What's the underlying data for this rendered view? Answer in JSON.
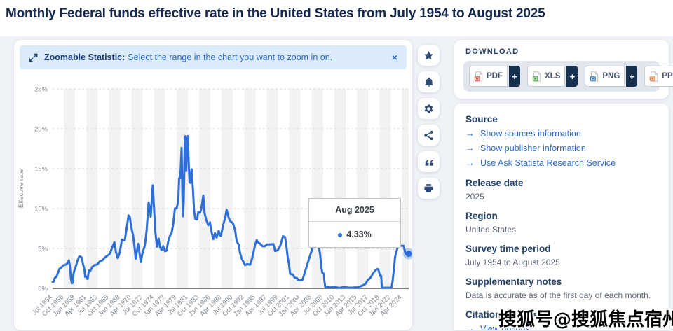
{
  "page": {
    "title": "Monthly Federal funds effective rate in the United States from July 1954 to August 2025",
    "watermark": "搜狐号@搜狐焦点宿州站"
  },
  "banner": {
    "label": "Zoomable Statistic:",
    "text": "Select the range in the chart you want to zoom in on.",
    "close_icon": "×"
  },
  "toolbar": {
    "buttons": [
      {
        "icon": "star"
      },
      {
        "icon": "bell"
      },
      {
        "icon": "gear"
      },
      {
        "icon": "share"
      },
      {
        "icon": "quote"
      },
      {
        "icon": "printer"
      }
    ]
  },
  "download": {
    "heading": "DOWNLOAD",
    "plus_label": "+",
    "formats": [
      {
        "label": "PDF",
        "color": "#d94f43"
      },
      {
        "label": "XLS",
        "color": "#4ca546"
      },
      {
        "label": "PNG",
        "color": "#3779c4"
      },
      {
        "label": "PPT",
        "color": "#e8823a"
      }
    ]
  },
  "info": {
    "arrow": "→",
    "source": {
      "heading": "Source",
      "links": [
        "Show sources information",
        "Show publisher information",
        "Use Ask Statista Research Service"
      ]
    },
    "sections": [
      {
        "heading": "Release date",
        "text": "2025"
      },
      {
        "heading": "Region",
        "text": "United States"
      },
      {
        "heading": "Survey time period",
        "text": "July 1954 to August 2025"
      },
      {
        "heading": "Supplementary notes",
        "text": "Data is accurate as of the first day of each month."
      }
    ],
    "citation": {
      "heading": "Citation formats",
      "link": "View options"
    }
  },
  "chart_data": {
    "type": "line",
    "title": "Monthly Federal funds effective rate in the United States from July 1954 to August 2025",
    "xlabel": "",
    "ylabel": "Effective rate",
    "ylim": [
      0,
      25
    ],
    "yticks": [
      "0%",
      "5%",
      "10%",
      "15%",
      "20%",
      "25%"
    ],
    "x_range": [
      "1954-07",
      "2025-08"
    ],
    "x_tick_step_months": 27,
    "x_tick_labels": [
      "Jul 1954",
      "Oct 1956",
      "Jan 1959",
      "Apr 1961",
      "Jul 1963",
      "Oct 1965",
      "Jan 1968",
      "Apr 1970",
      "Jul 1972",
      "Oct 1974",
      "Jan 1977",
      "Apr 1979",
      "Jul 1981",
      "Oct 1983",
      "Jan 1986",
      "Apr 1988",
      "Jul 1990",
      "Oct 1992",
      "Jan 1995",
      "Apr 1997",
      "Jul 1999",
      "Oct 2001",
      "Jan 2004",
      "Apr 2006",
      "Jul 2008",
      "Oct 2010",
      "Jan 2013",
      "Apr 2015",
      "Jul 2017",
      "Oct 2019",
      "Jan 2022",
      "Apr 2024"
    ],
    "grid": "horizontal-dashed",
    "background_bands": true,
    "legend": "none",
    "line_color": "#2f6fd9",
    "tooltip": {
      "date": "Aug 2025",
      "value": "4.33%"
    },
    "series": [
      {
        "name": "Effective rate (%)",
        "points": [
          [
            "1954-07",
            0.8
          ],
          [
            "1954-10",
            0.85
          ],
          [
            "1954-12",
            1.28
          ],
          [
            "1955-04",
            1.43
          ],
          [
            "1955-08",
            1.96
          ],
          [
            "1955-12",
            2.48
          ],
          [
            "1956-04",
            2.62
          ],
          [
            "1956-08",
            2.85
          ],
          [
            "1956-12",
            2.94
          ],
          [
            "1957-04",
            3.0
          ],
          [
            "1957-08",
            3.24
          ],
          [
            "1957-10",
            3.5
          ],
          [
            "1957-12",
            2.98
          ],
          [
            "1958-03",
            1.2
          ],
          [
            "1958-05",
            0.63
          ],
          [
            "1958-07",
            0.68
          ],
          [
            "1958-09",
            1.76
          ],
          [
            "1958-12",
            2.42
          ],
          [
            "1959-03",
            2.8
          ],
          [
            "1959-06",
            3.39
          ],
          [
            "1959-09",
            3.76
          ],
          [
            "1959-11",
            4.0
          ],
          [
            "1960-02",
            3.97
          ],
          [
            "1960-05",
            3.85
          ],
          [
            "1960-08",
            2.98
          ],
          [
            "1960-11",
            2.44
          ],
          [
            "1961-01",
            1.45
          ],
          [
            "1961-04",
            1.49
          ],
          [
            "1961-07",
            1.17
          ],
          [
            "1961-10",
            2.26
          ],
          [
            "1962-01",
            2.15
          ],
          [
            "1962-06",
            2.68
          ],
          [
            "1962-12",
            2.93
          ],
          [
            "1963-06",
            2.99
          ],
          [
            "1963-12",
            3.38
          ],
          [
            "1964-06",
            3.5
          ],
          [
            "1964-12",
            3.85
          ],
          [
            "1965-06",
            4.1
          ],
          [
            "1965-12",
            4.32
          ],
          [
            "1966-06",
            5.17
          ],
          [
            "1966-11",
            5.76
          ],
          [
            "1967-03",
            4.53
          ],
          [
            "1967-07",
            3.79
          ],
          [
            "1967-12",
            4.51
          ],
          [
            "1968-05",
            6.12
          ],
          [
            "1968-08",
            6.02
          ],
          [
            "1968-12",
            6.02
          ],
          [
            "1969-04",
            7.41
          ],
          [
            "1969-09",
            9.15
          ],
          [
            "1969-12",
            8.97
          ],
          [
            "1970-03",
            7.76
          ],
          [
            "1970-08",
            6.62
          ],
          [
            "1970-12",
            4.9
          ],
          [
            "1971-02",
            3.72
          ],
          [
            "1971-08",
            5.57
          ],
          [
            "1971-12",
            4.14
          ],
          [
            "1972-02",
            3.3
          ],
          [
            "1972-07",
            4.55
          ],
          [
            "1972-12",
            5.33
          ],
          [
            "1973-04",
            7.12
          ],
          [
            "1973-09",
            10.78
          ],
          [
            "1973-12",
            9.95
          ],
          [
            "1974-02",
            8.97
          ],
          [
            "1974-04",
            10.51
          ],
          [
            "1974-07",
            12.92
          ],
          [
            "1974-10",
            10.06
          ],
          [
            "1975-01",
            7.13
          ],
          [
            "1975-05",
            5.22
          ],
          [
            "1975-09",
            6.24
          ],
          [
            "1975-12",
            5.2
          ],
          [
            "1976-04",
            4.82
          ],
          [
            "1976-08",
            5.29
          ],
          [
            "1976-12",
            4.65
          ],
          [
            "1977-04",
            4.73
          ],
          [
            "1977-08",
            5.9
          ],
          [
            "1977-12",
            6.56
          ],
          [
            "1978-04",
            6.89
          ],
          [
            "1978-08",
            8.04
          ],
          [
            "1978-12",
            10.03
          ],
          [
            "1979-04",
            10.01
          ],
          [
            "1979-08",
            10.94
          ],
          [
            "1979-10",
            13.77
          ],
          [
            "1980-01",
            13.82
          ],
          [
            "1980-04",
            17.61
          ],
          [
            "1980-07",
            9.03
          ],
          [
            "1980-09",
            10.87
          ],
          [
            "1980-12",
            18.9
          ],
          [
            "1981-01",
            19.08
          ],
          [
            "1981-03",
            14.7
          ],
          [
            "1981-05",
            18.52
          ],
          [
            "1981-07",
            19.1
          ],
          [
            "1981-09",
            15.87
          ],
          [
            "1981-11",
            13.31
          ],
          [
            "1982-01",
            13.22
          ],
          [
            "1982-04",
            14.94
          ],
          [
            "1982-07",
            12.59
          ],
          [
            "1982-10",
            9.71
          ],
          [
            "1983-01",
            8.68
          ],
          [
            "1983-05",
            8.63
          ],
          [
            "1983-08",
            9.56
          ],
          [
            "1983-12",
            9.47
          ],
          [
            "1984-03",
            9.91
          ],
          [
            "1984-08",
            11.64
          ],
          [
            "1984-11",
            9.43
          ],
          [
            "1985-03",
            8.58
          ],
          [
            "1985-08",
            7.9
          ],
          [
            "1985-12",
            8.27
          ],
          [
            "1986-04",
            6.99
          ],
          [
            "1986-08",
            6.17
          ],
          [
            "1986-12",
            6.91
          ],
          [
            "1987-04",
            6.37
          ],
          [
            "1987-09",
            7.22
          ],
          [
            "1987-11",
            6.69
          ],
          [
            "1988-02",
            6.58
          ],
          [
            "1988-08",
            8.01
          ],
          [
            "1988-12",
            8.76
          ],
          [
            "1989-04",
            9.84
          ],
          [
            "1989-08",
            8.99
          ],
          [
            "1989-12",
            8.45
          ],
          [
            "1990-07",
            8.15
          ],
          [
            "1990-12",
            7.31
          ],
          [
            "1991-04",
            5.91
          ],
          [
            "1991-09",
            5.45
          ],
          [
            "1991-12",
            4.43
          ],
          [
            "1992-04",
            3.73
          ],
          [
            "1992-09",
            3.22
          ],
          [
            "1992-12",
            2.92
          ],
          [
            "1993-06",
            3.04
          ],
          [
            "1993-12",
            2.96
          ],
          [
            "1994-04",
            3.56
          ],
          [
            "1994-08",
            4.47
          ],
          [
            "1994-12",
            5.45
          ],
          [
            "1995-04",
            6.05
          ],
          [
            "1995-08",
            5.74
          ],
          [
            "1995-12",
            5.6
          ],
          [
            "1996-06",
            5.27
          ],
          [
            "1996-12",
            5.29
          ],
          [
            "1997-04",
            5.51
          ],
          [
            "1997-12",
            5.5
          ],
          [
            "1998-08",
            5.55
          ],
          [
            "1998-12",
            4.68
          ],
          [
            "1999-06",
            4.76
          ],
          [
            "1999-12",
            5.3
          ],
          [
            "2000-03",
            5.85
          ],
          [
            "2000-07",
            6.54
          ],
          [
            "2000-12",
            6.4
          ],
          [
            "2001-03",
            5.31
          ],
          [
            "2001-06",
            3.97
          ],
          [
            "2001-09",
            3.07
          ],
          [
            "2001-12",
            1.82
          ],
          [
            "2002-06",
            1.75
          ],
          [
            "2002-11",
            1.34
          ],
          [
            "2003-05",
            1.26
          ],
          [
            "2003-07",
            1.01
          ],
          [
            "2004-05",
            1.0
          ],
          [
            "2004-09",
            1.61
          ],
          [
            "2004-12",
            2.16
          ],
          [
            "2005-04",
            2.79
          ],
          [
            "2005-08",
            3.5
          ],
          [
            "2005-12",
            4.16
          ],
          [
            "2006-04",
            4.79
          ],
          [
            "2006-07",
            5.24
          ],
          [
            "2007-07",
            5.26
          ],
          [
            "2007-10",
            4.76
          ],
          [
            "2007-12",
            4.24
          ],
          [
            "2008-03",
            2.61
          ],
          [
            "2008-05",
            1.98
          ],
          [
            "2008-09",
            1.81
          ],
          [
            "2008-10",
            0.97
          ],
          [
            "2008-12",
            0.16
          ],
          [
            "2009-06",
            0.21
          ],
          [
            "2009-12",
            0.12
          ],
          [
            "2010-06",
            0.18
          ],
          [
            "2010-12",
            0.18
          ],
          [
            "2011-06",
            0.09
          ],
          [
            "2011-12",
            0.07
          ],
          [
            "2012-06",
            0.16
          ],
          [
            "2012-12",
            0.16
          ],
          [
            "2013-06",
            0.09
          ],
          [
            "2013-12",
            0.09
          ],
          [
            "2014-06",
            0.1
          ],
          [
            "2014-12",
            0.12
          ],
          [
            "2015-06",
            0.13
          ],
          [
            "2015-12",
            0.24
          ],
          [
            "2016-06",
            0.38
          ],
          [
            "2016-12",
            0.54
          ],
          [
            "2017-06",
            1.04
          ],
          [
            "2017-12",
            1.3
          ],
          [
            "2018-06",
            1.82
          ],
          [
            "2018-12",
            2.27
          ],
          [
            "2019-04",
            2.42
          ],
          [
            "2019-07",
            2.4
          ],
          [
            "2019-10",
            1.83
          ],
          [
            "2019-12",
            1.55
          ],
          [
            "2020-02",
            1.58
          ],
          [
            "2020-03",
            0.65
          ],
          [
            "2020-05",
            0.05
          ],
          [
            "2020-12",
            0.09
          ],
          [
            "2021-06",
            0.08
          ],
          [
            "2021-12",
            0.08
          ],
          [
            "2022-03",
            0.2
          ],
          [
            "2022-05",
            0.77
          ],
          [
            "2022-07",
            1.68
          ],
          [
            "2022-09",
            2.56
          ],
          [
            "2022-11",
            3.78
          ],
          [
            "2023-01",
            4.33
          ],
          [
            "2023-03",
            4.65
          ],
          [
            "2023-05",
            5.06
          ],
          [
            "2023-08",
            5.33
          ],
          [
            "2023-12",
            5.33
          ],
          [
            "2024-04",
            5.33
          ],
          [
            "2024-08",
            5.33
          ],
          [
            "2024-09",
            5.13
          ],
          [
            "2024-10",
            4.83
          ],
          [
            "2024-11",
            4.64
          ],
          [
            "2024-12",
            4.48
          ],
          [
            "2025-01",
            4.33
          ],
          [
            "2025-04",
            4.33
          ],
          [
            "2025-08",
            4.33
          ]
        ]
      }
    ]
  }
}
